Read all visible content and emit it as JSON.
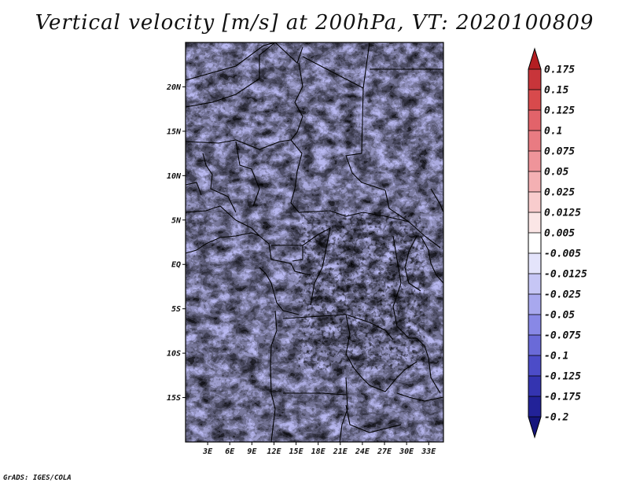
{
  "title": "Vertical velocity [m/s] at 200hPa, VT: 2020100809",
  "credit": "GrADS: IGES/COLA",
  "map": {
    "lat_labels": [
      "20N",
      "15N",
      "10N",
      "5N",
      "EQ",
      "5S",
      "10S",
      "15S"
    ],
    "lon_labels": [
      "3E",
      "6E",
      "9E",
      "12E",
      "15E",
      "18E",
      "21E",
      "24E",
      "27E",
      "30E",
      "33E"
    ],
    "lat_values": [
      20,
      15,
      10,
      5,
      0,
      -5,
      -10,
      -15
    ],
    "lon_values": [
      3,
      6,
      9,
      12,
      15,
      18,
      21,
      24,
      27,
      30,
      33
    ],
    "lon_range": [
      0,
      35
    ],
    "lat_range": [
      -20,
      25
    ]
  },
  "colorbar": {
    "labels": [
      "0.175",
      "0.15",
      "0.125",
      "0.1",
      "0.075",
      "0.05",
      "0.025",
      "0.0125",
      "0.005",
      "-0.005",
      "-0.0125",
      "-0.025",
      "-0.05",
      "-0.075",
      "-0.1",
      "-0.125",
      "-0.175",
      "-0.2"
    ],
    "colors": [
      "#b41e22",
      "#c8353a",
      "#d84a4c",
      "#e2636a",
      "#e97b82",
      "#ef949a",
      "#f4b0b3",
      "#f8cccd",
      "#fbe6e6",
      "#ffffff",
      "#e4e4fb",
      "#c6c6f5",
      "#a8a8ee",
      "#8888e6",
      "#6a6ad8",
      "#4c4cc8",
      "#3434b0",
      "#222298",
      "#15157c"
    ]
  }
}
